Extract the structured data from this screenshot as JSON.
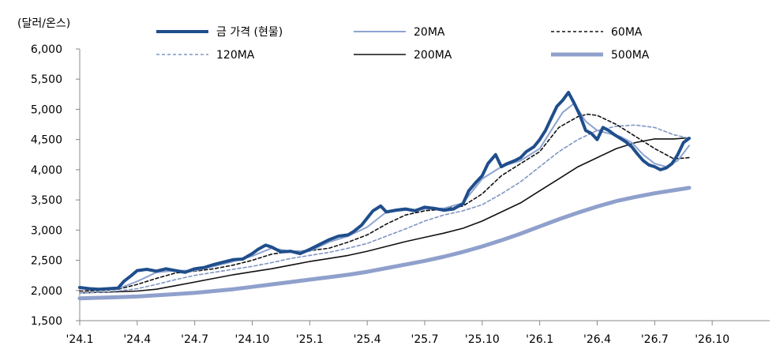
{
  "chart_data": {
    "type": "line",
    "ylabel": "(달러/온스)",
    "ylim": [
      1500,
      6000
    ],
    "yticks": [
      1500,
      2000,
      2500,
      3000,
      3500,
      4000,
      4500,
      5000,
      5500,
      6000
    ],
    "ytick_labels": [
      "1,500",
      "2,000",
      "2,500",
      "3,000",
      "3,500",
      "4,000",
      "4,500",
      "5,000",
      "5,500",
      "6,000"
    ],
    "xlim": [
      0,
      36
    ],
    "xticks": [
      0,
      3,
      6,
      9,
      12,
      15,
      18,
      21,
      24,
      27,
      30,
      33
    ],
    "xtick_labels": [
      "'24.1",
      "'24.4",
      "'24.7",
      "'24.10",
      "'25.1",
      "'25.4",
      "'25.7",
      "'25.10",
      "'26.1",
      "'26.4",
      "'26.7",
      "'26.10"
    ],
    "grid": false,
    "legend_position": "top",
    "series": [
      {
        "name": "금 가격 (현물)",
        "color": "#1f4e8c",
        "width": 4,
        "dash": "",
        "x": [
          0,
          0.5,
          1,
          1.5,
          2,
          2.3,
          2.7,
          3,
          3.5,
          4,
          4.5,
          5,
          5.5,
          6,
          6.5,
          7,
          7.5,
          8,
          8.5,
          9,
          9.3,
          9.7,
          10,
          10.5,
          11,
          11.5,
          12,
          12.5,
          13,
          13.5,
          14,
          14.3,
          14.7,
          15,
          15.3,
          15.7,
          16,
          16.5,
          17,
          17.5,
          18,
          18.5,
          19,
          19.5,
          20,
          20.3,
          20.7,
          21,
          21.3,
          21.7,
          22,
          22.3,
          22.7,
          23,
          23.3,
          23.7,
          24,
          24.3,
          24.6,
          24.9,
          25.2,
          25.5,
          25.8,
          26.1,
          26.4,
          26.7,
          27,
          27.3,
          27.6,
          27.9,
          28.2,
          28.5,
          28.8,
          29.1,
          29.4,
          29.7,
          30,
          30.3,
          30.6,
          30.9,
          31.2,
          31.5,
          31.8
        ],
        "y": [
          2050,
          2030,
          2020,
          2030,
          2040,
          2150,
          2250,
          2330,
          2350,
          2320,
          2360,
          2330,
          2300,
          2360,
          2380,
          2430,
          2470,
          2510,
          2520,
          2610,
          2680,
          2750,
          2720,
          2640,
          2650,
          2610,
          2680,
          2760,
          2840,
          2900,
          2920,
          2980,
          3080,
          3200,
          3320,
          3400,
          3300,
          3330,
          3350,
          3320,
          3380,
          3360,
          3330,
          3350,
          3440,
          3650,
          3800,
          3900,
          4100,
          4250,
          4050,
          4100,
          4150,
          4200,
          4300,
          4380,
          4500,
          4650,
          4850,
          5050,
          5150,
          5280,
          5100,
          4900,
          4650,
          4600,
          4500,
          4700,
          4650,
          4580,
          4520,
          4460,
          4380,
          4260,
          4150,
          4080,
          4050,
          4000,
          4030,
          4100,
          4250,
          4450,
          4520
        ]
      },
      {
        "name": "20MA",
        "color": "#8ea3d0",
        "width": 2,
        "dash": "",
        "x": [
          0,
          1,
          2,
          3,
          4,
          5,
          6,
          7,
          8,
          9,
          10,
          11,
          12,
          13,
          14,
          15,
          16,
          17,
          18,
          19,
          20,
          21,
          22,
          23,
          24,
          24.6,
          25.2,
          25.8,
          26.4,
          27,
          27.6,
          28.2,
          28.8,
          29.4,
          30,
          30.6,
          31.2,
          31.8
        ],
        "y": [
          2040,
          2030,
          2030,
          2150,
          2300,
          2330,
          2330,
          2400,
          2480,
          2570,
          2700,
          2650,
          2650,
          2800,
          2900,
          3050,
          3300,
          3330,
          3350,
          3360,
          3450,
          3850,
          4050,
          4150,
          4350,
          4650,
          4950,
          5100,
          4800,
          4650,
          4600,
          4550,
          4450,
          4250,
          4100,
          4050,
          4150,
          4400
        ]
      },
      {
        "name": "60MA",
        "color": "#111111",
        "width": 1.6,
        "dash": "4,3",
        "x": [
          0,
          1,
          2,
          3,
          4,
          5,
          6,
          7,
          8,
          9,
          10,
          11,
          12,
          13,
          14,
          15,
          16,
          17,
          18,
          19,
          20,
          21,
          22,
          23,
          24,
          25,
          26,
          26.5,
          27,
          28,
          29,
          30,
          31,
          31.8
        ],
        "y": [
          1990,
          2000,
          2020,
          2100,
          2200,
          2290,
          2320,
          2360,
          2420,
          2500,
          2600,
          2650,
          2660,
          2700,
          2800,
          2920,
          3100,
          3250,
          3320,
          3350,
          3400,
          3600,
          3900,
          4100,
          4300,
          4700,
          4880,
          4920,
          4900,
          4750,
          4550,
          4350,
          4180,
          4200
        ]
      },
      {
        "name": "120MA",
        "color": "#7f95c2",
        "width": 1.6,
        "dash": "4,3",
        "x": [
          0,
          1,
          2,
          3,
          4,
          5,
          6,
          7,
          8,
          9,
          10,
          11,
          12,
          13,
          14,
          15,
          16,
          17,
          18,
          19,
          20,
          21,
          22,
          23,
          24,
          25,
          26,
          27,
          28,
          29,
          30,
          31,
          31.8
        ],
        "y": [
          1960,
          1970,
          1990,
          2030,
          2100,
          2180,
          2250,
          2300,
          2350,
          2400,
          2460,
          2530,
          2580,
          2630,
          2700,
          2780,
          2900,
          3020,
          3150,
          3250,
          3320,
          3420,
          3600,
          3800,
          4050,
          4300,
          4500,
          4650,
          4720,
          4740,
          4700,
          4580,
          4520
        ]
      },
      {
        "name": "200MA",
        "color": "#111111",
        "width": 1.6,
        "dash": "",
        "x": [
          0,
          1,
          2,
          3,
          4,
          5,
          6,
          7,
          8,
          9,
          10,
          11,
          12,
          13,
          14,
          15,
          16,
          17,
          18,
          19,
          20,
          21,
          22,
          23,
          24,
          25,
          26,
          27,
          28,
          29,
          30,
          31,
          31.8
        ],
        "y": [
          1960,
          1970,
          1980,
          1990,
          2020,
          2080,
          2140,
          2200,
          2260,
          2310,
          2360,
          2420,
          2480,
          2530,
          2580,
          2650,
          2730,
          2810,
          2880,
          2950,
          3030,
          3150,
          3300,
          3450,
          3650,
          3850,
          4050,
          4200,
          4350,
          4450,
          4510,
          4510,
          4530
        ]
      },
      {
        "name": "500MA",
        "color": "#8fa0cc",
        "width": 5,
        "dash": "",
        "x": [
          0,
          1,
          2,
          3,
          4,
          5,
          6,
          7,
          8,
          9,
          10,
          11,
          12,
          13,
          14,
          15,
          16,
          17,
          18,
          19,
          20,
          21,
          22,
          23,
          24,
          25,
          26,
          27,
          28,
          29,
          30,
          31,
          31.8
        ],
        "y": [
          1870,
          1880,
          1890,
          1900,
          1920,
          1940,
          1960,
          1990,
          2020,
          2060,
          2100,
          2140,
          2180,
          2220,
          2260,
          2310,
          2370,
          2430,
          2490,
          2560,
          2640,
          2730,
          2830,
          2940,
          3060,
          3180,
          3290,
          3390,
          3480,
          3550,
          3610,
          3660,
          3700
        ]
      }
    ]
  }
}
